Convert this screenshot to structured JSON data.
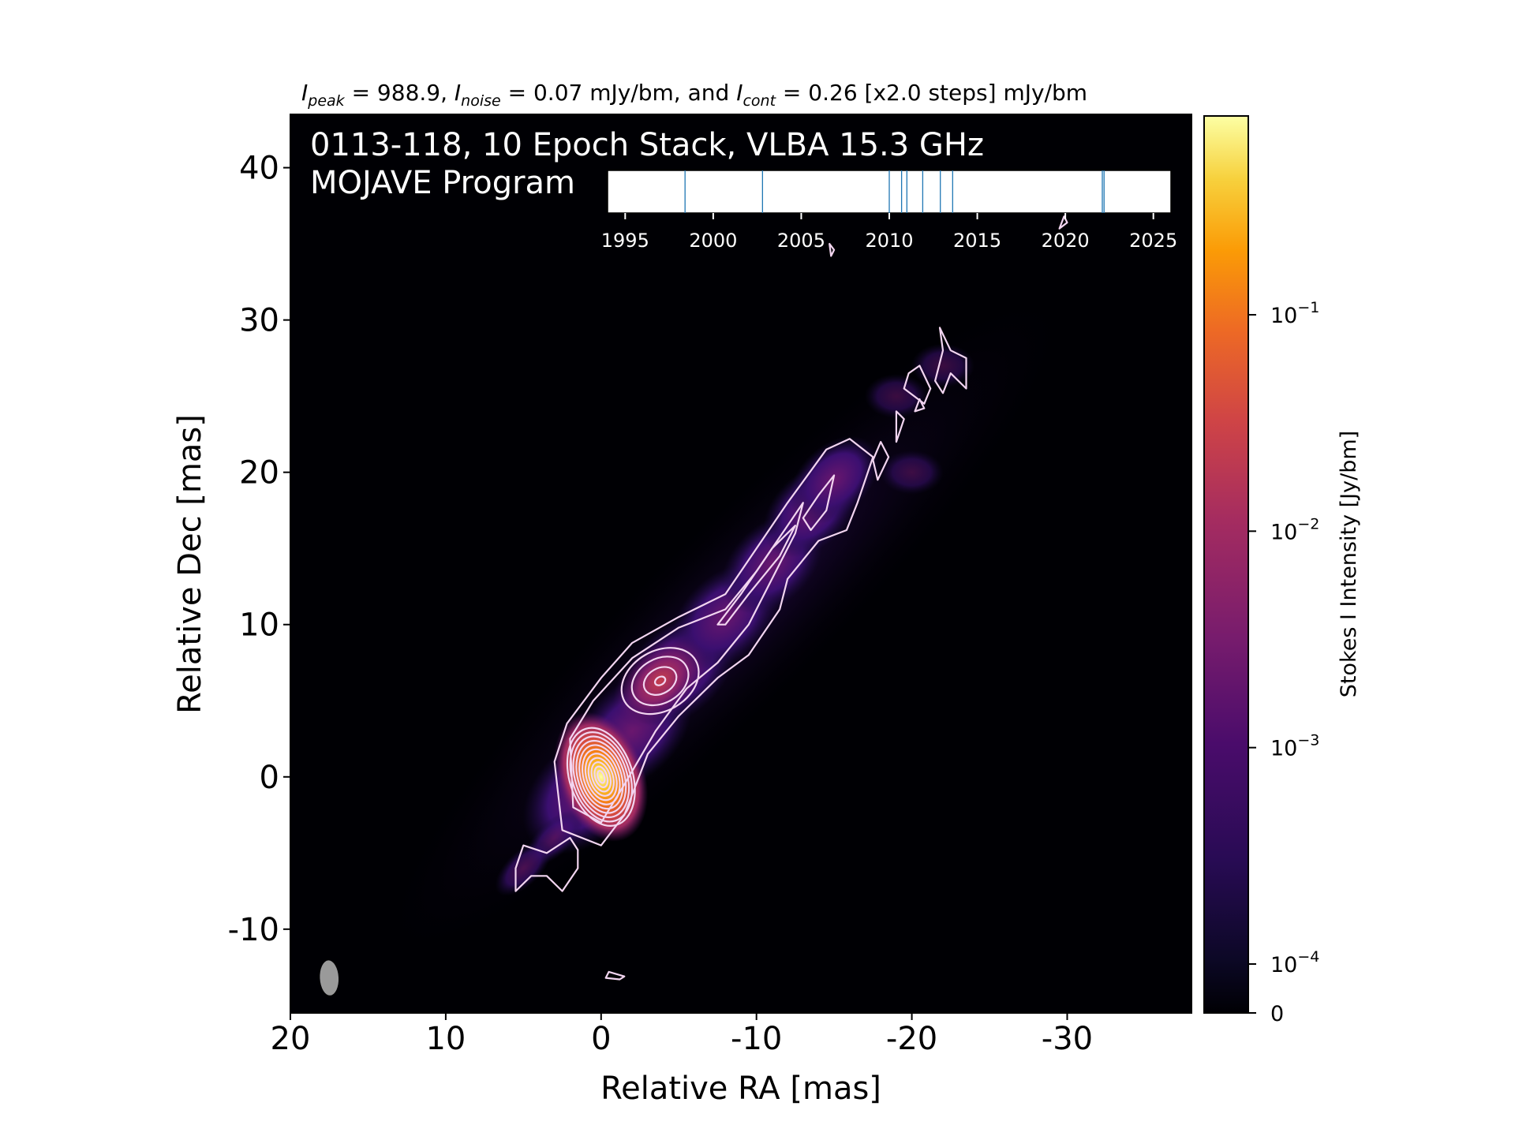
{
  "chart_data": {
    "type": "heatmap",
    "header": {
      "i_peak_symbol": "I",
      "i_peak_sub": "peak",
      "i_peak_value": " = 988.9, ",
      "i_noise_symbol": "I",
      "i_noise_sub": "noise",
      "i_noise_value": " = 0.07 mJy/bm, and ",
      "i_cont_symbol": "I",
      "i_cont_sub": "cont",
      "i_cont_value": " = 0.26 [x2.0 steps] mJy/bm"
    },
    "overlay_title_line1": "0113-118, 10 Epoch Stack, VLBA 15.3 GHz",
    "overlay_title_line2": "MOJAVE Program",
    "xlabel": "Relative RA [mas]",
    "ylabel": "Relative Dec [mas]",
    "xlim": [
      20,
      -38
    ],
    "ylim": [
      -15.5,
      43.5
    ],
    "x_ticks": [
      20,
      10,
      0,
      -10,
      -20,
      -30
    ],
    "x_tick_labels": [
      "20",
      "10",
      "0",
      "-10",
      "-20",
      "-30"
    ],
    "y_ticks": [
      40,
      30,
      20,
      10,
      0,
      -10
    ],
    "y_tick_labels": [
      "40",
      "30",
      "20",
      "10",
      "0",
      "-10"
    ],
    "colorbar": {
      "label": "Stokes I Intensity [Jy/bm]",
      "scale": "log",
      "colormap": "inferno",
      "ticks": [
        {
          "value": 0.1,
          "base": "10",
          "exp": "−1"
        },
        {
          "value": 0.01,
          "base": "10",
          "exp": "−2"
        },
        {
          "value": 0.001,
          "base": "10",
          "exp": "−3"
        },
        {
          "value": 0.0001,
          "base": "10",
          "exp": "−4"
        },
        {
          "value": 0,
          "base": "0",
          "exp": ""
        }
      ]
    },
    "epoch_timeline": {
      "xlim": [
        1994,
        2026
      ],
      "ticks": [
        1995,
        2000,
        2005,
        2010,
        2015,
        2020,
        2025
      ],
      "tick_labels": [
        "1995",
        "2000",
        "2005",
        "2010",
        "2015",
        "2020",
        "2025"
      ],
      "epochs": [
        1998.4,
        2002.8,
        2010.0,
        2010.7,
        2011.0,
        2011.9,
        2012.9,
        2013.6,
        2022.1,
        2022.2
      ],
      "line_color": "#1f77b4"
    },
    "jet": {
      "core": [
        0,
        0
      ],
      "knots": [
        [
          -3.8,
          6.3
        ],
        [
          -8,
          10.5
        ],
        [
          -12,
          15
        ],
        [
          -14.5,
          18.5
        ]
      ],
      "position_angle_deg": -44
    },
    "beam": {
      "ra": 17.5,
      "dec": -13.2,
      "major_mas": 2.3,
      "minor_mas": 1.2,
      "pa_deg": -3
    },
    "colors": {
      "background": "#000004",
      "contour": "#f2d5f0",
      "beam": "#9a9a9a"
    }
  }
}
